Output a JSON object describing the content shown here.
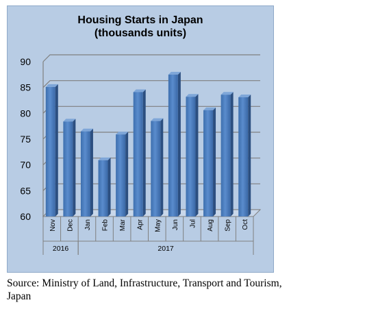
{
  "chart_data": {
    "type": "bar",
    "title_line1": "Housing Starts in Japan",
    "title_line2": "(thousands units)",
    "categories": [
      "Nov",
      "Dec",
      "Jan",
      "Feb",
      "Mar",
      "Apr",
      "May",
      "Jun",
      "Jul",
      "Aug",
      "Sep",
      "Oct"
    ],
    "year_groups": [
      {
        "label": "2016",
        "count": 2
      },
      {
        "label": "2017",
        "count": 10
      }
    ],
    "values": [
      85.1,
      78.4,
      76.5,
      70.9,
      75.9,
      84.1,
      78.5,
      87.5,
      83.2,
      80.6,
      83.6,
      83.1
    ],
    "ylim": [
      60,
      90
    ],
    "yticks": [
      60,
      65,
      70,
      75,
      80,
      85,
      90
    ],
    "grid": true,
    "bar_color": "#4f81bd",
    "panel_color": "#b8cce4"
  },
  "source_line1": "Source: Ministry of Land, Infrastructure, Transport and Tourism,",
  "source_line2": "Japan"
}
